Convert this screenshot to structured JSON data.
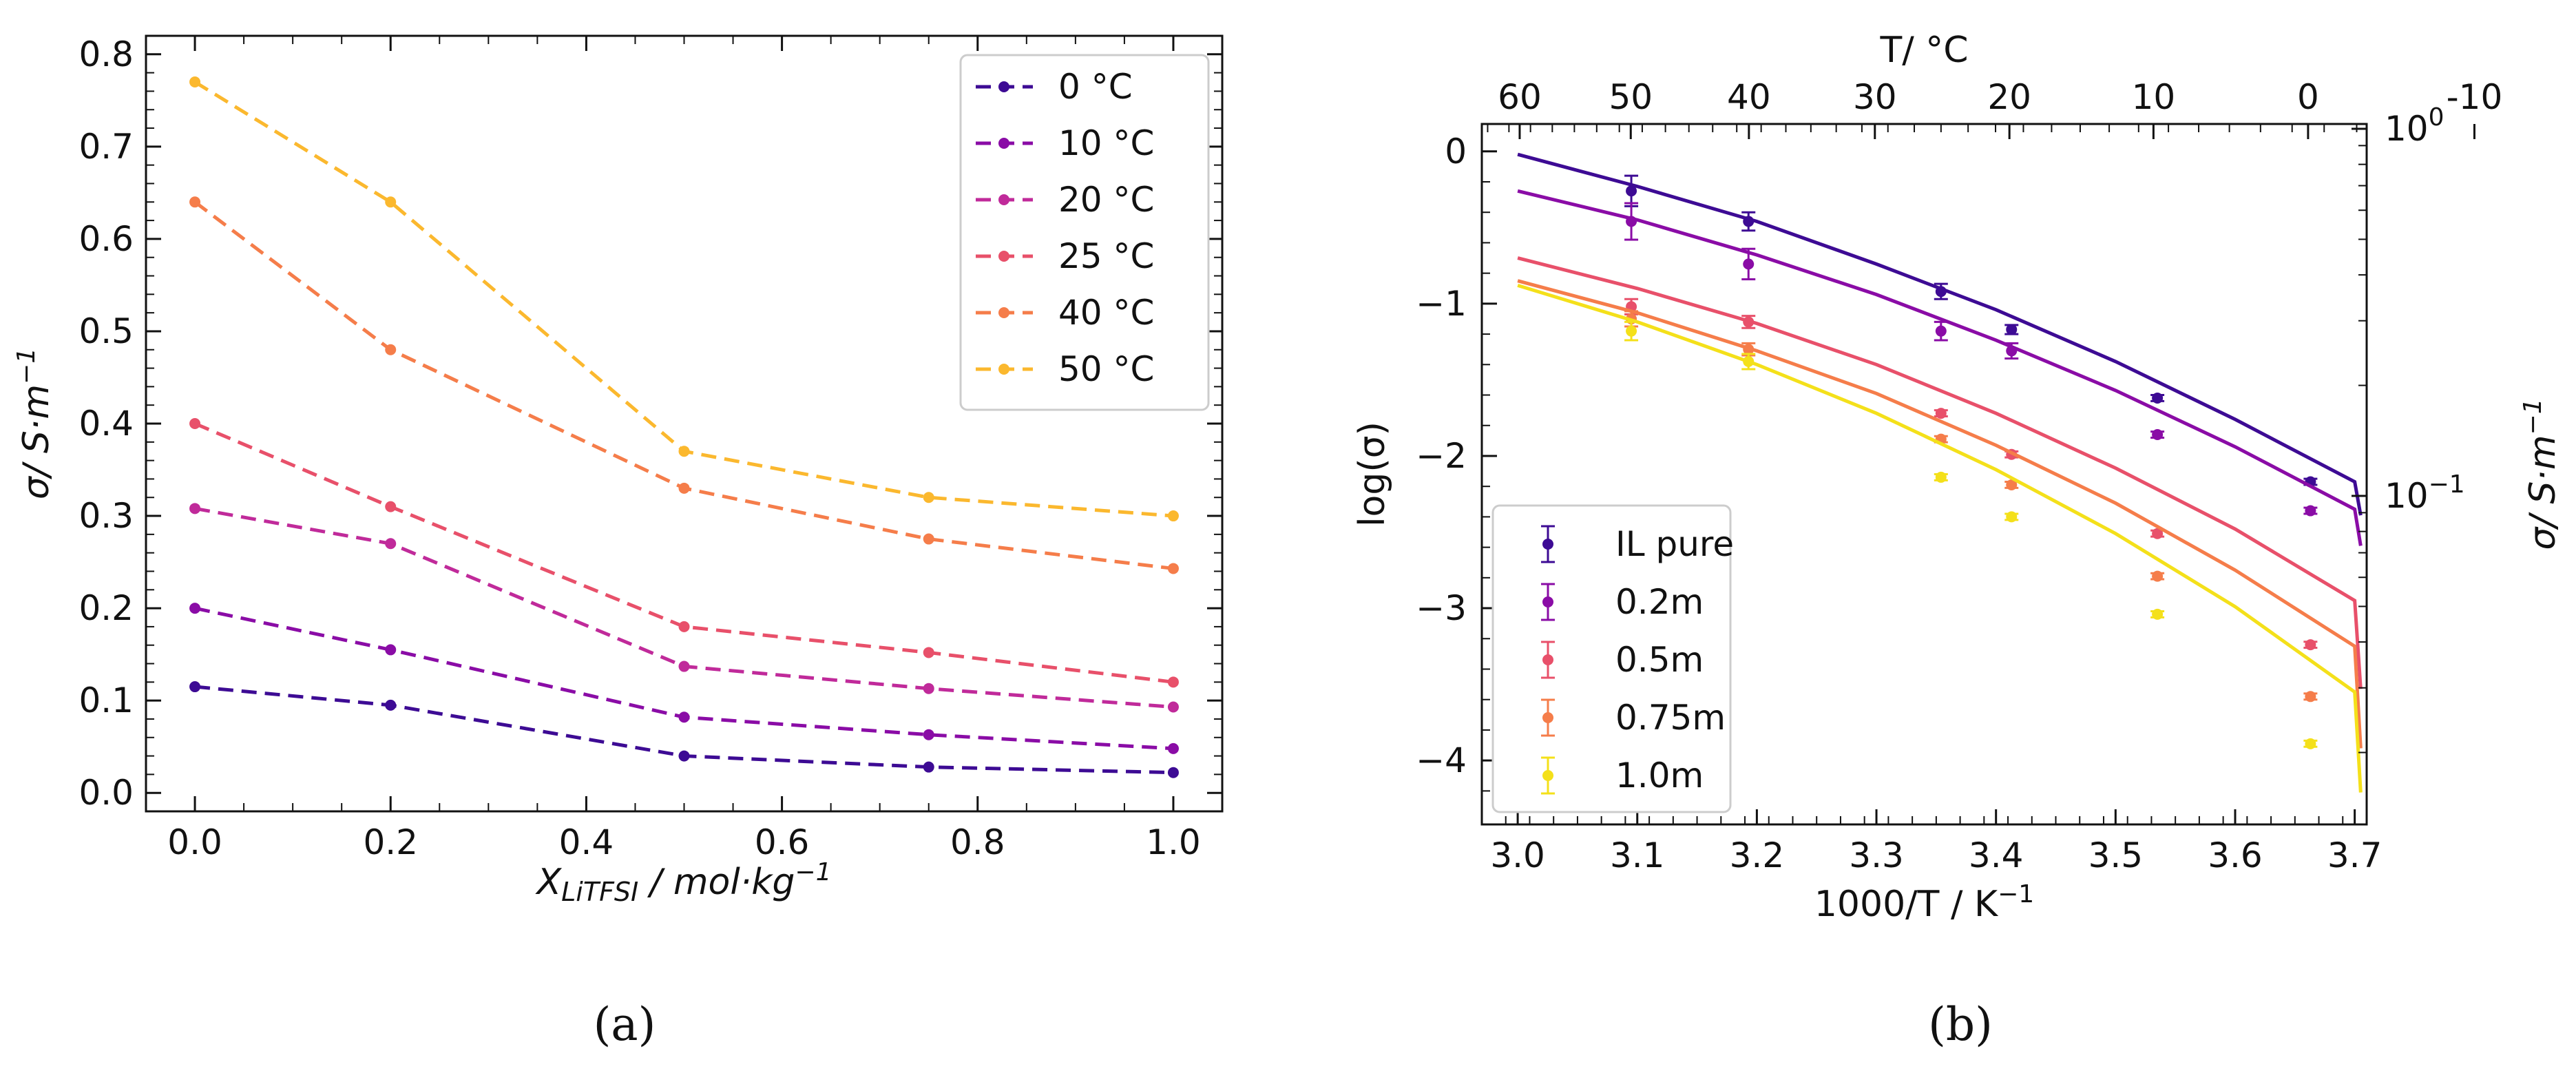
{
  "chart_data": [
    {
      "type": "line",
      "panel_label": "(a)",
      "xlabel_main": "X",
      "xlabel_sub": "LiTFSI",
      "xlabel_rest": " / mol·kg",
      "xlabel_sup": "−1",
      "ylabel_main": "σ/ S·m",
      "ylabel_sup": "−1",
      "xlim": [
        -0.05,
        1.05
      ],
      "ylim": [
        -0.02,
        0.82
      ],
      "xticks": [
        0.0,
        0.2,
        0.4,
        0.6,
        0.8,
        1.0
      ],
      "xtick_labels": [
        "0.0",
        "0.2",
        "0.4",
        "0.6",
        "0.8",
        "1.0"
      ],
      "yticks": [
        0.0,
        0.1,
        0.2,
        0.3,
        0.4,
        0.5,
        0.6,
        0.7,
        0.8
      ],
      "ytick_labels": [
        "0.0",
        "0.1",
        "0.2",
        "0.3",
        "0.4",
        "0.5",
        "0.6",
        "0.7",
        "0.8"
      ],
      "legend_position": "top-right",
      "x": [
        0.0,
        0.2,
        0.5,
        0.75,
        1.0
      ],
      "series": [
        {
          "name": "0 °C",
          "color": "#3d0b94",
          "values": [
            0.115,
            0.095,
            0.04,
            0.028,
            0.022
          ]
        },
        {
          "name": "10 °C",
          "color": "#8a0ca6",
          "values": [
            0.2,
            0.155,
            0.082,
            0.063,
            0.048
          ]
        },
        {
          "name": "20 °C",
          "color": "#c02a9a",
          "values": [
            0.308,
            0.27,
            0.137,
            0.113,
            0.093
          ]
        },
        {
          "name": "25 °C",
          "color": "#e8506a",
          "values": [
            0.4,
            0.31,
            0.18,
            0.152,
            0.12
          ]
        },
        {
          "name": "40 °C",
          "color": "#f57d4a",
          "values": [
            0.64,
            0.48,
            0.33,
            0.275,
            0.243
          ]
        },
        {
          "name": "50 °C",
          "color": "#fbb82e",
          "values": [
            0.77,
            0.64,
            0.37,
            0.32,
            0.3
          ]
        }
      ]
    },
    {
      "type": "scatter",
      "panel_label": "(b)",
      "xlabel": "1000/T / K",
      "xlabel_sup": "−1",
      "ylabel": "log(σ)",
      "y2label_main": "σ/ S·m",
      "y2label_sup": "−1",
      "top_xlabel": "T/ °C",
      "xlim": [
        2.97,
        3.71
      ],
      "ylim": [
        -4.42,
        0.18
      ],
      "xticks": [
        3.0,
        3.1,
        3.2,
        3.3,
        3.4,
        3.5,
        3.6,
        3.7
      ],
      "xtick_labels": [
        "3.0",
        "3.1",
        "3.2",
        "3.3",
        "3.4",
        "3.5",
        "3.6",
        "3.7"
      ],
      "yticks": [
        0,
        -1,
        -2,
        -3,
        -4
      ],
      "ytick_labels": [
        "0",
        "−1",
        "−2",
        "−3",
        "−4"
      ],
      "top_ticks_celsius": [
        60,
        50,
        40,
        30,
        20,
        10,
        0,
        -10
      ],
      "top_tick_labels": [
        "60",
        "50",
        "40",
        "30",
        "20",
        "10",
        "0",
        "-10"
      ],
      "right_ticks": [
        {
          "value": 1,
          "label_base": "10",
          "label_exp": "0"
        },
        {
          "value": 0.1,
          "label_base": "10",
          "label_exp": "−1"
        }
      ],
      "legend_position": "bottom-left",
      "x": [
        3.095,
        3.193,
        3.354,
        3.413,
        3.535,
        3.663
      ],
      "series": [
        {
          "name": "IL pure",
          "color": "#3d0b94",
          "values": [
            -0.26,
            -0.46,
            -0.92,
            -1.17,
            -1.62,
            -2.17
          ],
          "errors": [
            0.1,
            0.06,
            0.05,
            0.03,
            0.02,
            0.02
          ],
          "fit": [
            -0.02,
            -0.23,
            -0.46,
            -0.74,
            -1.04,
            -1.38,
            -1.76,
            -2.17,
            -2.39
          ]
        },
        {
          "name": "0.2m",
          "color": "#8a0ca6",
          "values": [
            -0.46,
            -0.74,
            -1.18,
            -1.31,
            -1.86,
            -2.36
          ],
          "errors": [
            0.12,
            0.1,
            0.06,
            0.05,
            0.02,
            0.02
          ],
          "fit": [
            -0.26,
            -0.45,
            -0.68,
            -0.94,
            -1.24,
            -1.57,
            -1.94,
            -2.35,
            -2.59
          ]
        },
        {
          "name": "0.5m",
          "color": "#e8506a",
          "values": [
            -1.02,
            -1.12,
            -1.72,
            -1.99,
            -2.51,
            -3.24
          ],
          "errors": [
            0.05,
            0.04,
            0.02,
            0.02,
            0.02,
            0.02
          ],
          "fit": [
            -0.7,
            -0.9,
            -1.13,
            -1.4,
            -1.72,
            -2.08,
            -2.48,
            -2.95,
            -3.53
          ]
        },
        {
          "name": "0.75m",
          "color": "#f57d4a",
          "values": [
            -1.1,
            -1.3,
            -1.89,
            -2.19,
            -2.79,
            -3.58
          ],
          "errors": [
            0.05,
            0.04,
            0.02,
            0.02,
            0.02,
            0.02
          ],
          "fit": [
            -0.85,
            -1.06,
            -1.31,
            -1.59,
            -1.93,
            -2.31,
            -2.75,
            -3.25,
            -3.92
          ]
        },
        {
          "name": "1.0m",
          "color": "#f4e01a",
          "values": [
            -1.18,
            -1.38,
            -2.14,
            -2.4,
            -3.04,
            -3.89
          ],
          "errors": [
            0.06,
            0.05,
            0.02,
            0.02,
            0.02,
            0.02
          ],
          "fit": [
            -0.88,
            -1.12,
            -1.4,
            -1.72,
            -2.09,
            -2.51,
            -2.99,
            -3.55,
            -4.21
          ]
        }
      ],
      "fit_x": [
        3.0,
        3.1,
        3.2,
        3.3,
        3.4,
        3.5,
        3.6,
        3.7,
        3.705
      ]
    }
  ]
}
